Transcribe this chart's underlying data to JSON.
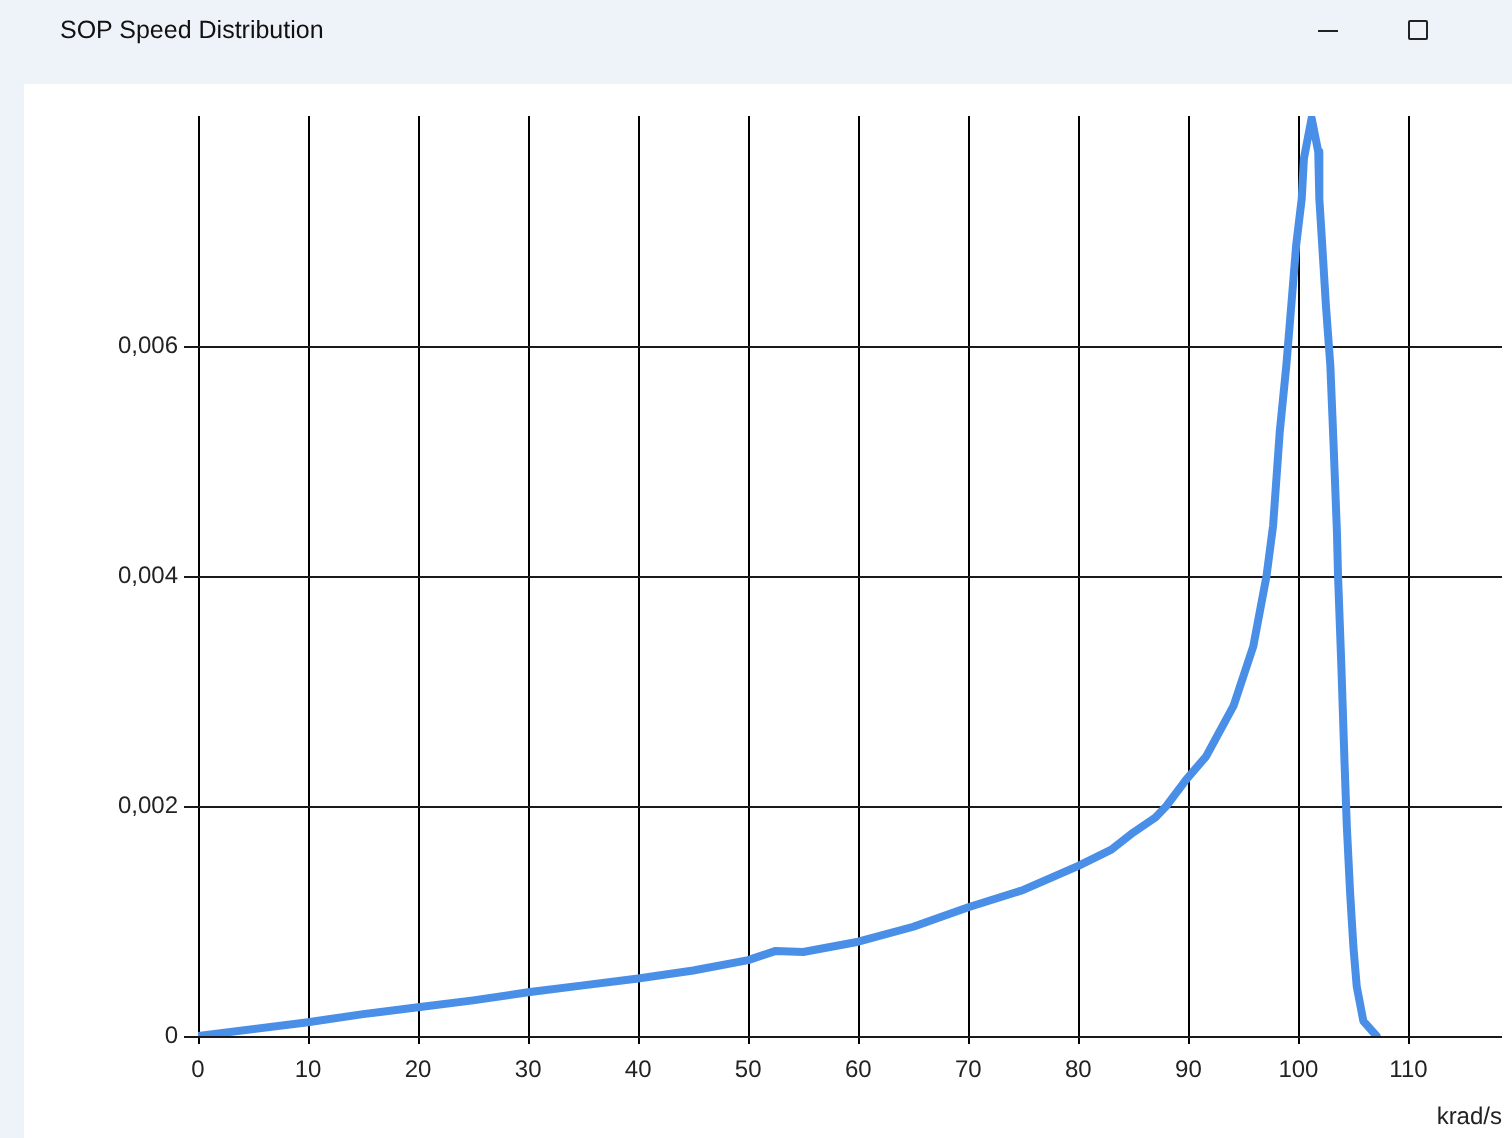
{
  "chart_data": {
    "type": "line",
    "title": "SOP Speed Distribution",
    "xlabel": "krad/s",
    "x": [
      0,
      10,
      15,
      20,
      25,
      30,
      35,
      40,
      45,
      50,
      52.5,
      55,
      60,
      65,
      70,
      75,
      80,
      83,
      85,
      87,
      88,
      89.8,
      91.6,
      94.1,
      95.9,
      97.1,
      97.7,
      98.3,
      98.9,
      99.4,
      99.8,
      100.3,
      100.5,
      101.2,
      101.8,
      101.9,
      102.2,
      102.5,
      102.9,
      103.2,
      103.5,
      103.6,
      103.9,
      104.2,
      104.4,
      104.7,
      105,
      105.3,
      105.9,
      107.1
    ],
    "values": [
      0,
      0.00012,
      0.00019,
      0.00025,
      0.00031,
      0.00038,
      0.00044,
      0.0005,
      0.00057,
      0.00066,
      0.00074,
      0.00073,
      0.00082,
      0.00095,
      0.00112,
      0.00127,
      0.00148,
      0.00162,
      0.00177,
      0.0019,
      0.002,
      0.00223,
      0.00243,
      0.00287,
      0.00339,
      0.004,
      0.00444,
      0.00525,
      0.00583,
      0.00641,
      0.00688,
      0.00728,
      0.00763,
      0.00798,
      0.00769,
      0.00728,
      0.00682,
      0.00635,
      0.00583,
      0.00513,
      0.00438,
      0.004,
      0.00322,
      0.00235,
      0.00182,
      0.00124,
      0.00077,
      0.00043,
      0.00013,
      0
    ],
    "color": "#4a8fe7",
    "marker": "none",
    "grid": true,
    "xlim": [
      0,
      118.5
    ],
    "xticks": [
      0,
      10,
      20,
      30,
      40,
      50,
      60,
      70,
      80,
      90,
      100,
      110
    ],
    "ylim": [
      0,
      0.008
    ],
    "yticks": [
      0,
      {
        "value": 0.002,
        "label": "0,002"
      },
      {
        "value": 0.004,
        "label": "0,004"
      },
      {
        "value": 0.006,
        "label": "0,006"
      }
    ]
  }
}
